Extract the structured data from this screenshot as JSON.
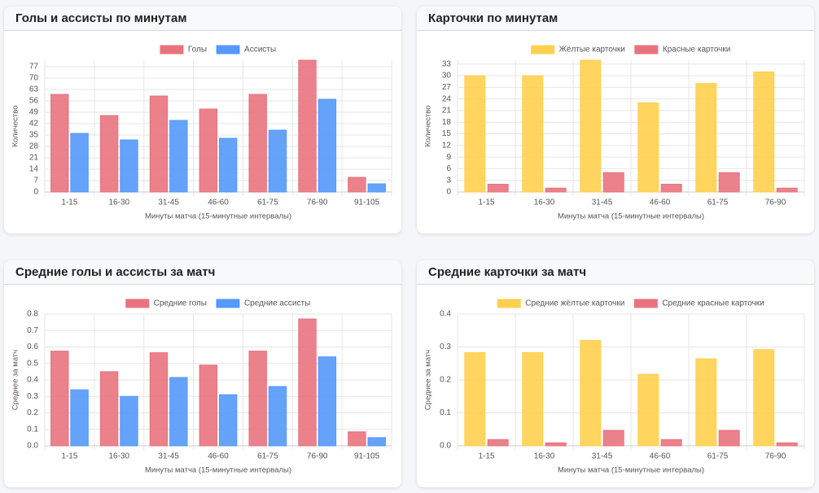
{
  "chart_data": [
    {
      "type": "bar",
      "title": "Голы и ассисты по минутам",
      "x_label": "Минуты матча (15-минутные интервалы)",
      "y_label": "Количество",
      "categories": [
        "1-15",
        "16-30",
        "31-45",
        "46-60",
        "61-75",
        "76-90",
        "91-105"
      ],
      "series": [
        {
          "name": "Голы",
          "color": "#e8737e",
          "values": [
            60,
            47,
            59,
            51,
            60,
            81,
            9
          ]
        },
        {
          "name": "Ассисты",
          "color": "#5499fb",
          "values": [
            36,
            32,
            44,
            33,
            38,
            57,
            5
          ]
        }
      ],
      "ylim": [
        0,
        81
      ],
      "yticks": [
        0,
        7,
        14,
        21,
        28,
        35,
        42,
        49,
        56,
        63,
        70,
        77
      ],
      "grid": true,
      "legend": "top"
    },
    {
      "type": "bar",
      "title": "Карточки по минутам",
      "x_label": "Минуты матча (15-минутные интервалы)",
      "y_label": "Количество",
      "categories": [
        "1-15",
        "16-30",
        "31-45",
        "46-60",
        "61-75",
        "76-90"
      ],
      "series": [
        {
          "name": "Жёлтые карточки",
          "color": "#ffd04f",
          "values": [
            30,
            30,
            34,
            23,
            28,
            31
          ]
        },
        {
          "name": "Красные карточки",
          "color": "#e8737e",
          "values": [
            2,
            1,
            5,
            2,
            5,
            1
          ]
        }
      ],
      "ylim": [
        0,
        34
      ],
      "yticks": [
        0,
        3,
        6,
        9,
        12,
        15,
        18,
        21,
        24,
        27,
        30,
        33
      ],
      "grid": true,
      "legend": "top"
    },
    {
      "type": "bar",
      "title": "Средние голы и ассисты за матч",
      "x_label": "Минуты матча (15-минутные интервалы)",
      "y_label": "Среднее за матч",
      "categories": [
        "1-15",
        "16-30",
        "31-45",
        "46-60",
        "61-75",
        "76-90",
        "91-105"
      ],
      "series": [
        {
          "name": "Средние голы",
          "color": "#e8737e",
          "values": [
            0.575,
            0.45,
            0.565,
            0.49,
            0.575,
            0.77,
            0.085
          ]
        },
        {
          "name": "Средние ассисты",
          "color": "#5499fb",
          "values": [
            0.34,
            0.3,
            0.415,
            0.31,
            0.36,
            0.54,
            0.05
          ]
        }
      ],
      "ylim": [
        0,
        0.8
      ],
      "yticks": [
        {
          "value": 0,
          "label": "0.0"
        },
        0.1,
        0.2,
        0.3,
        0.4,
        0.5,
        0.6,
        0.7,
        0.8
      ],
      "grid": true,
      "legend": "top"
    },
    {
      "type": "bar",
      "title": "Средние карточки за матч",
      "x_label": "Минуты матча (15-минутные интервалы)",
      "y_label": "Среднее за матч",
      "categories": [
        "1-15",
        "16-30",
        "31-45",
        "46-60",
        "61-75",
        "76-90"
      ],
      "series": [
        {
          "name": "Средние жёлтые карточки",
          "color": "#ffd04f",
          "values": [
            0.283,
            0.283,
            0.32,
            0.217,
            0.264,
            0.292
          ]
        },
        {
          "name": "Средние красные карточки",
          "color": "#e8737e",
          "values": [
            0.019,
            0.009,
            0.047,
            0.019,
            0.047,
            0.009
          ]
        }
      ],
      "ylim": [
        0,
        0.4
      ],
      "yticks": [
        {
          "value": 0,
          "label": "0.0"
        },
        0.1,
        0.2,
        0.3,
        0.4
      ],
      "grid": true,
      "legend": "top"
    }
  ]
}
